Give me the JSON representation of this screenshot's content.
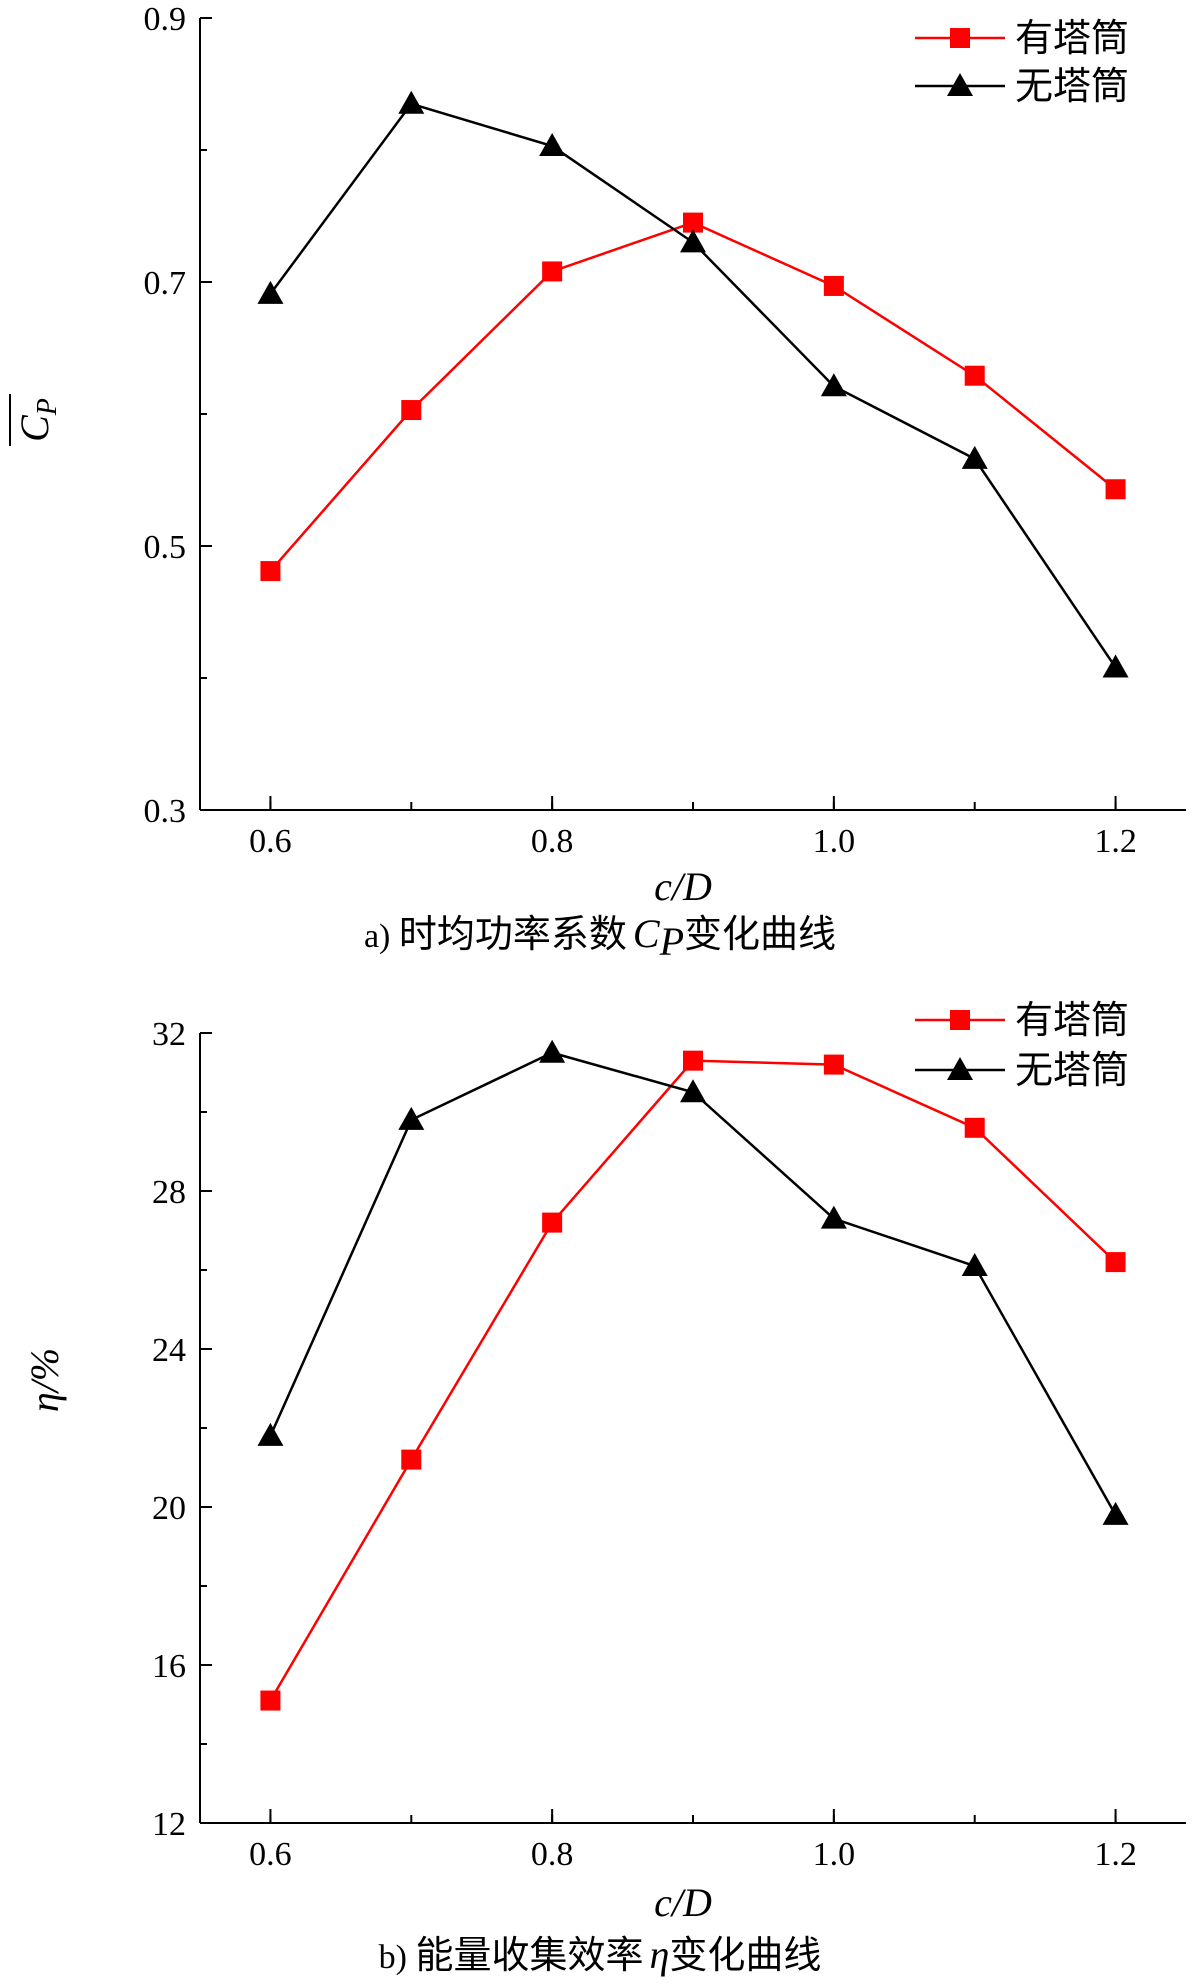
{
  "chart_data": [
    {
      "type": "line",
      "caption_label": "a)",
      "caption_pre": "时均功率系数",
      "caption_sym": "C",
      "caption_sub": "P",
      "caption_post": "变化曲线",
      "xlabel": "c/D",
      "ylabel": "C",
      "ylabel_sub": "P",
      "xlim": [
        0.55,
        1.25
      ],
      "ylim": [
        0.3,
        0.9
      ],
      "xticks": [
        "0.6",
        "0.8",
        "1.0",
        "1.2"
      ],
      "yticks": [
        "0.3",
        "0.5",
        "0.7",
        "0.9"
      ],
      "x": [
        0.6,
        0.7,
        0.8,
        0.9,
        1.0,
        1.1,
        1.2
      ],
      "series": [
        {
          "name": "有塔筒",
          "color": "#ff0000",
          "marker": "square",
          "values": [
            0.481,
            0.603,
            0.708,
            0.745,
            0.697,
            0.629,
            0.543
          ]
        },
        {
          "name": "无塔筒",
          "color": "#000000",
          "marker": "triangle",
          "values": [
            0.691,
            0.835,
            0.803,
            0.73,
            0.621,
            0.566,
            0.408
          ]
        }
      ],
      "legend": "top-right",
      "grid": false
    },
    {
      "type": "line",
      "caption_label": "b)",
      "caption_pre": "能量收集效率",
      "caption_sym": "η",
      "caption_sub": "",
      "caption_post": "变化曲线",
      "xlabel": "c/D",
      "ylabel": "η/%",
      "ylabel_sub": "",
      "xlim": [
        0.55,
        1.25
      ],
      "ylim": [
        12,
        32
      ],
      "xticks": [
        "0.6",
        "0.8",
        "1.0",
        "1.2"
      ],
      "yticks": [
        "12",
        "16",
        "20",
        "24",
        "28",
        "32"
      ],
      "x": [
        0.6,
        0.7,
        0.8,
        0.9,
        1.0,
        1.1,
        1.2
      ],
      "series": [
        {
          "name": "有塔筒",
          "color": "#ff0000",
          "marker": "square",
          "values": [
            15.1,
            21.2,
            27.2,
            31.3,
            31.2,
            29.6,
            26.2
          ]
        },
        {
          "name": "无塔筒",
          "color": "#000000",
          "marker": "triangle",
          "values": [
            21.8,
            29.8,
            31.5,
            30.5,
            27.3,
            26.1,
            19.8
          ]
        }
      ],
      "legend": "top-right",
      "grid": false
    }
  ]
}
